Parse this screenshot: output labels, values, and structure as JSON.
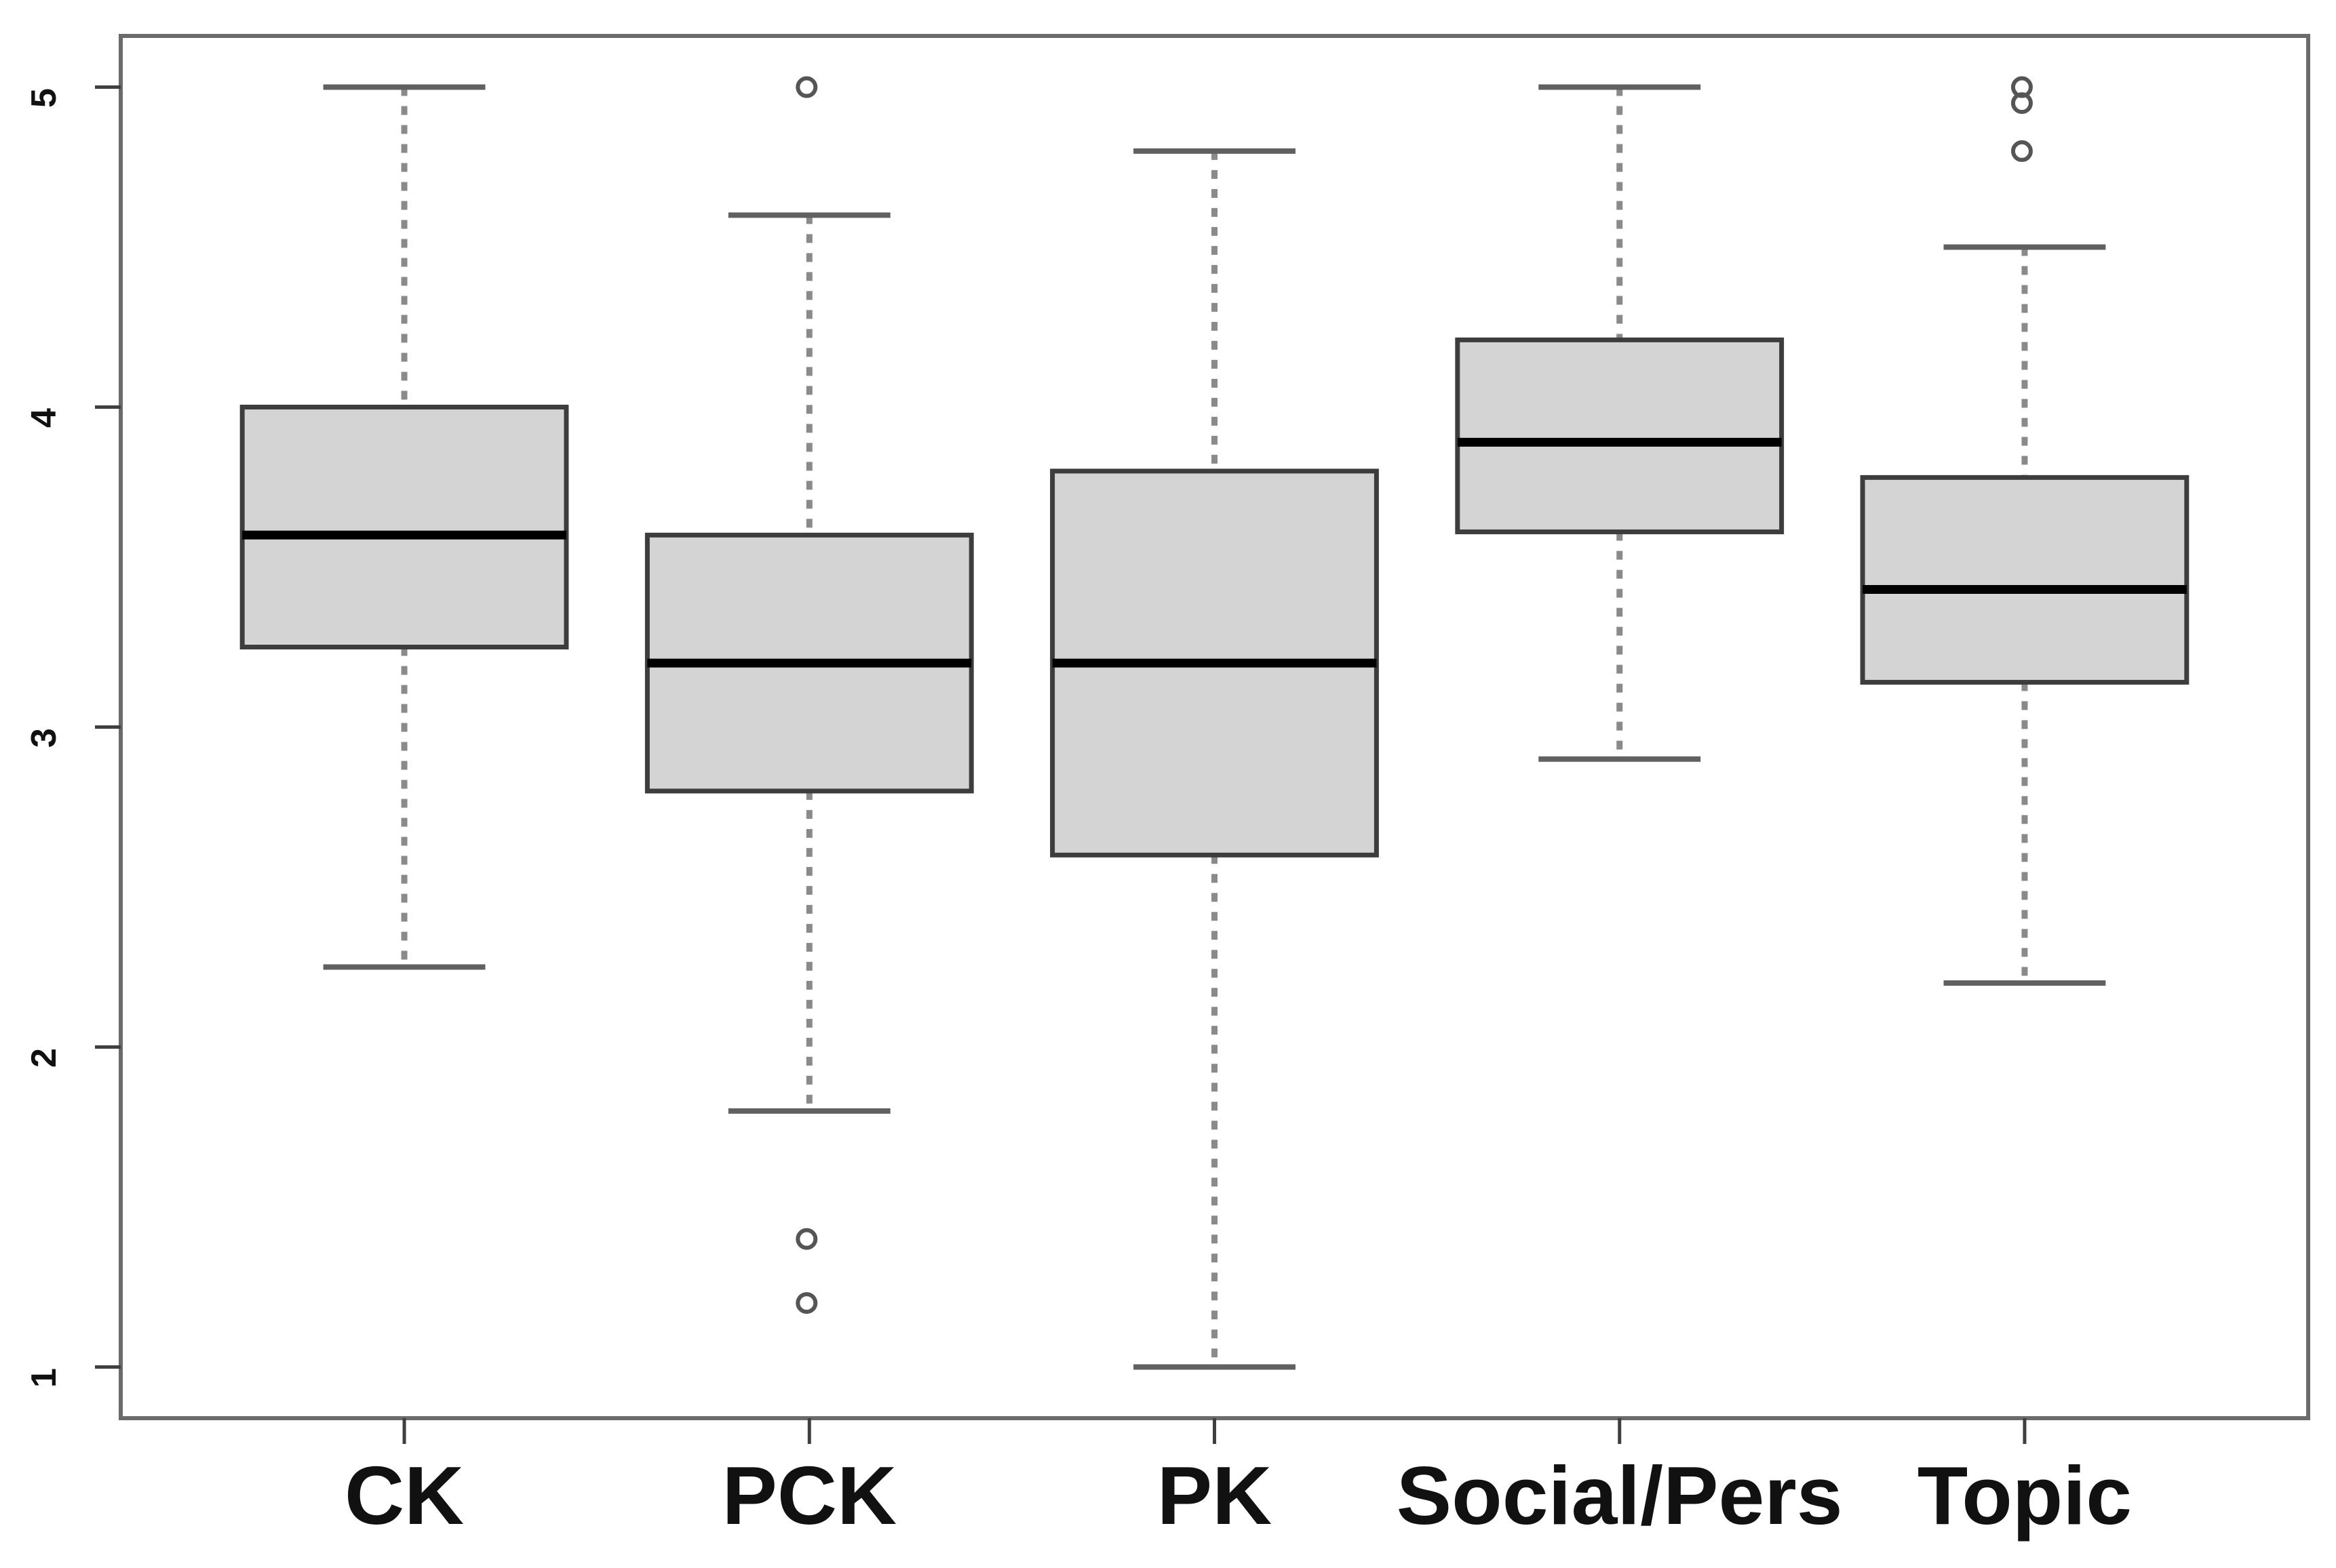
{
  "figure": {
    "background_color": "#ffffff",
    "description": "R-style boxplot of five knowledge-domain scores on a 1-to-5 scale"
  },
  "chart_data": {
    "type": "boxplot",
    "title": "",
    "xlabel": "",
    "ylabel": "",
    "grid": false,
    "legend": null,
    "categories": [
      "CK",
      "PCK",
      "PK",
      "Social/Pers",
      "Topic"
    ],
    "y_axis": {
      "ticks": [
        1,
        2,
        3,
        4,
        5
      ],
      "tick_labels": [
        "1",
        "2",
        "3",
        "4",
        "5"
      ],
      "min": 1,
      "max": 5,
      "internal_range": [
        0.84,
        5.16
      ]
    },
    "x_axis": {
      "internal_range": [
        0.3,
        5.7
      ],
      "box_width_units": 0.8,
      "cap_width_units": 0.4
    },
    "series": [
      {
        "name": "CK",
        "whisker_low": 2.25,
        "q1": 3.25,
        "median": 3.6,
        "q3": 4.0,
        "whisker_high": 5.0,
        "outliers": []
      },
      {
        "name": "PCK",
        "whisker_low": 1.8,
        "q1": 2.8,
        "median": 3.2,
        "q3": 3.6,
        "whisker_high": 4.6,
        "outliers": [
          5.0,
          1.4,
          1.2
        ]
      },
      {
        "name": "PK",
        "whisker_low": 1.0,
        "q1": 2.6,
        "median": 3.2,
        "q3": 3.8,
        "whisker_high": 4.8,
        "outliers": []
      },
      {
        "name": "Social/Pers",
        "whisker_low": 2.9,
        "q1": 3.61,
        "median": 3.89,
        "q3": 4.21,
        "whisker_high": 5.0,
        "outliers": []
      },
      {
        "name": "Topic",
        "whisker_low": 2.2,
        "q1": 3.14,
        "median": 3.43,
        "q3": 3.78,
        "whisker_high": 4.5,
        "outliers": [
          5.0,
          4.95,
          4.8
        ]
      }
    ],
    "style": {
      "box_fill": "#d4d4d4",
      "box_border": "#3d3d3d",
      "median_color": "#000000",
      "whisker_color": "#8a8a8a",
      "cap_color": "#606060",
      "outlier_color": "#555555",
      "frame_color": "#6b6b6b",
      "tick_color": "#3f3f3f",
      "label_color": "#111111"
    }
  }
}
